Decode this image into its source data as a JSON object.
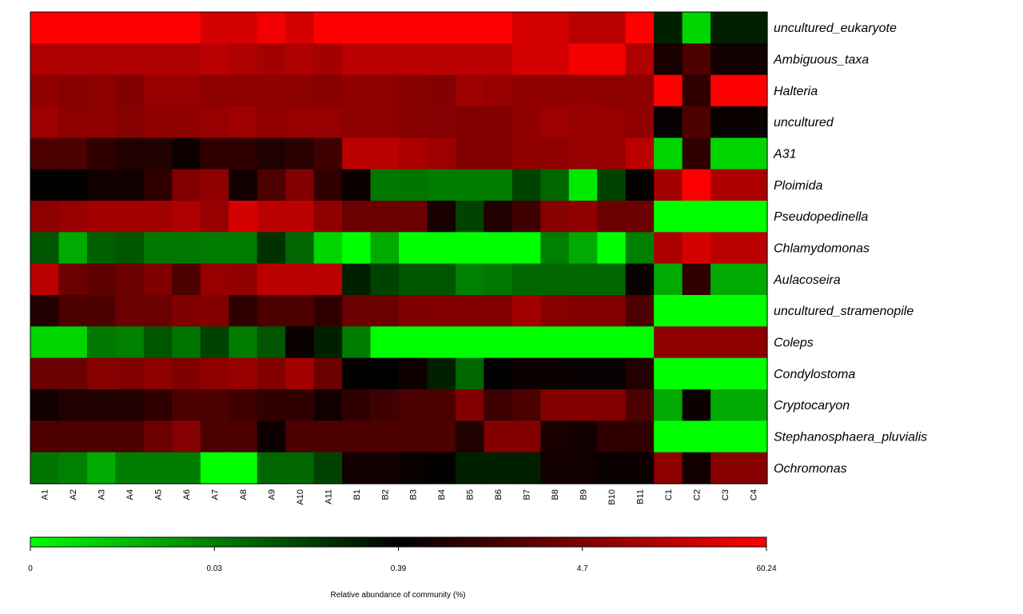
{
  "chart_data": {
    "type": "heatmap",
    "title": "",
    "xlabel": "",
    "ylabel": "",
    "columns": [
      "A1",
      "A2",
      "A3",
      "A4",
      "A5",
      "A6",
      "A7",
      "A8",
      "A9",
      "A10",
      "A11",
      "B1",
      "B2",
      "B3",
      "B4",
      "B5",
      "B6",
      "B7",
      "B8",
      "B9",
      "B10",
      "B11",
      "C1",
      "C2",
      "C3",
      "C4"
    ],
    "rows": [
      "uncultured_eukaryote",
      "Ambiguous_taxa",
      "Halteria",
      "uncultured",
      "A31",
      "Ploimida",
      "Pseudopedinella",
      "Chlamydomonas",
      "Aulacoseira",
      "uncultured_stramenopile",
      "Coleps",
      "Condylostoma",
      "Cryptocaryon",
      "Stephanosphaera_pluvialis",
      "Ochromonas"
    ],
    "values": [
      [
        60.24,
        60.24,
        60.24,
        60.24,
        60.24,
        60.24,
        42,
        42,
        55,
        42,
        60.24,
        60.24,
        60.24,
        60.24,
        60.24,
        60.24,
        60.24,
        42,
        42,
        30,
        30,
        60.24,
        0.3,
        0.01,
        0.3,
        0.3
      ],
      [
        25,
        25,
        25,
        25,
        25,
        25,
        30,
        25,
        20,
        25,
        20,
        30,
        30,
        30,
        30,
        30,
        30,
        42,
        42,
        55,
        55,
        25,
        1.2,
        3,
        1,
        1
      ],
      [
        12,
        8,
        10,
        6,
        15,
        15,
        10,
        10,
        10,
        10,
        9,
        12,
        10,
        8,
        6,
        18,
        15,
        12,
        12,
        12,
        10,
        10,
        60.24,
        2,
        60.24,
        60.24
      ],
      [
        18,
        10,
        12,
        8,
        12,
        12,
        15,
        18,
        12,
        15,
        15,
        10,
        10,
        8,
        7,
        6,
        6,
        12,
        18,
        15,
        15,
        12,
        0.6,
        3,
        0.7,
        0.7
      ],
      [
        3,
        3,
        2,
        1.5,
        1.5,
        0.9,
        2,
        2,
        1.5,
        1.8,
        2.5,
        30,
        30,
        24,
        18,
        6,
        6,
        12,
        12,
        15,
        15,
        30,
        0.01,
        2,
        0.01,
        0.01
      ],
      [
        0.5,
        0.5,
        1,
        1,
        2,
        6,
        12,
        1,
        3,
        6,
        2,
        0.8,
        0.05,
        0.06,
        0.04,
        0.04,
        0.04,
        0.2,
        0.1,
        0.005,
        0.2,
        0.5,
        20,
        60.24,
        24,
        24
      ],
      [
        10,
        15,
        20,
        20,
        20,
        25,
        15,
        42,
        30,
        30,
        12,
        4,
        4,
        4,
        1.2,
        0.2,
        1.5,
        2.5,
        8,
        12,
        4,
        4,
        0,
        0,
        0,
        0
      ],
      [
        0.15,
        0.02,
        0.12,
        0.15,
        0.05,
        0.05,
        0.04,
        0.04,
        0.25,
        0.1,
        0.01,
        0,
        0.02,
        0,
        0,
        0,
        0,
        0,
        0.03,
        0.02,
        0,
        0.03,
        24,
        42,
        30,
        30
      ],
      [
        30,
        4,
        3.5,
        4,
        5,
        3,
        15,
        12,
        30,
        30,
        30,
        0.3,
        0.2,
        0.15,
        0.15,
        0.03,
        0.05,
        0.1,
        0.1,
        0.1,
        0.1,
        0.7,
        0.02,
        2,
        0.02,
        0.02
      ],
      [
        1.5,
        3,
        3,
        4,
        4,
        5,
        6,
        2,
        3,
        3,
        2,
        4,
        4,
        5,
        6,
        6,
        6,
        20,
        8,
        6,
        6,
        3,
        0,
        0,
        0,
        0
      ],
      [
        0.01,
        0.01,
        0.05,
        0.03,
        0.15,
        0.06,
        0.2,
        0.04,
        0.15,
        0.7,
        0.3,
        0.04,
        0,
        0,
        0,
        0,
        0,
        0,
        0,
        0,
        0,
        0,
        12,
        12,
        10,
        10
      ],
      [
        4,
        4,
        8,
        6,
        10,
        5,
        12,
        15,
        6,
        20,
        4,
        0.5,
        0.4,
        0.9,
        0.3,
        0.1,
        0.4,
        0.8,
        0.8,
        0.6,
        0.6,
        1.5,
        0,
        0,
        0,
        0
      ],
      [
        1,
        1.5,
        1.5,
        1.5,
        2,
        3,
        3,
        2.5,
        2,
        2,
        1,
        2,
        2.5,
        3,
        3,
        6,
        2.5,
        3,
        6,
        6,
        6,
        3,
        0.02,
        0.8,
        0.02,
        0.02
      ],
      [
        3,
        3,
        3,
        3,
        4,
        7,
        3,
        3,
        0.8,
        3,
        3,
        3,
        3,
        3,
        3,
        1.5,
        6,
        6,
        1.2,
        1,
        2,
        2,
        0,
        0,
        0,
        0
      ],
      [
        0.06,
        0.03,
        0.02,
        0.04,
        0.04,
        0.04,
        0,
        0,
        0.1,
        0.1,
        0.2,
        1,
        1,
        0.7,
        0.5,
        0.3,
        0.3,
        0.3,
        1,
        1,
        0.7,
        0.8,
        10,
        1,
        8,
        8
      ]
    ],
    "colorbar": {
      "title": "Relative abundance of community (%)",
      "tick_labels": [
        "0",
        "0.03",
        "0.39",
        "4.7",
        "60.24"
      ],
      "tick_values": [
        0,
        0.03,
        0.39,
        4.7,
        60.24
      ],
      "low_color": "#00ff00",
      "mid_color": "#000000",
      "high_color": "#ff0000"
    },
    "legend_position": "bottom",
    "grid": false
  }
}
